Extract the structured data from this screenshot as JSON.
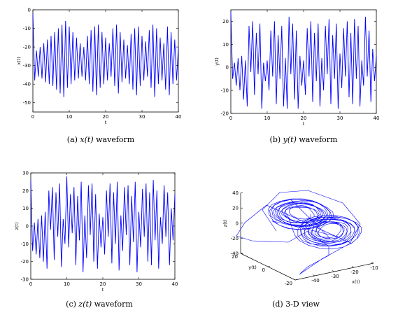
{
  "chart_data": [
    {
      "id": "x",
      "type": "line",
      "caption": {
        "prefix": "(a) ",
        "math": "x(t)",
        "suffix": " waveform"
      },
      "xlabel": "t",
      "ylabel": "x(t)",
      "xlim": [
        0,
        40
      ],
      "ylim": [
        -55,
        0
      ],
      "xticks": [
        0,
        10,
        20,
        30,
        40
      ],
      "yticks": [
        0,
        -10,
        -20,
        -30,
        -40,
        -50
      ],
      "grid": false,
      "color": "#0000ff",
      "series": [
        {
          "x": [
            0,
            0.5,
            1,
            1.5,
            2,
            2.5,
            3,
            3.5,
            4,
            4.5,
            5,
            5.5,
            6,
            6.5,
            7,
            7.5,
            8,
            8.5,
            9,
            9.5,
            10,
            10.5,
            11,
            11.5,
            12,
            12.5,
            13,
            13.5,
            14,
            14.5,
            15,
            15.5,
            16,
            16.5,
            17,
            17.5,
            18,
            18.5,
            19,
            19.5,
            20,
            20.5,
            21,
            21.5,
            22,
            22.5,
            23,
            23.5,
            24,
            24.5,
            25,
            25.5,
            26,
            26.5,
            27,
            27.5,
            28,
            28.5,
            29,
            29.5,
            30,
            30.5,
            31,
            31.5,
            32,
            32.5,
            33,
            33.5,
            34,
            34.5,
            35,
            35.5,
            36,
            36.5,
            37,
            37.5,
            38,
            38.5,
            39,
            39.5,
            40
          ],
          "y": [
            -2,
            -38,
            -22,
            -36,
            -20,
            -37,
            -18,
            -39,
            -16,
            -40,
            -14,
            -41,
            -12,
            -43,
            -10,
            -45,
            -8,
            -47,
            -6,
            -42,
            -9,
            -40,
            -12,
            -38,
            -15,
            -37,
            -18,
            -36,
            -20,
            -38,
            -14,
            -40,
            -11,
            -44,
            -9,
            -46,
            -8,
            -42,
            -12,
            -40,
            -15,
            -38,
            -18,
            -36,
            -10,
            -41,
            -8,
            -45,
            -12,
            -39,
            -16,
            -37,
            -19,
            -40,
            -13,
            -43,
            -10,
            -46,
            -9,
            -41,
            -14,
            -38,
            -17,
            -36,
            -11,
            -42,
            -8,
            -47,
            -10,
            -40,
            -15,
            -38,
            -18,
            -43,
            -9,
            -46,
            -12,
            -40,
            -16,
            -38,
            -20
          ]
        }
      ]
    },
    {
      "id": "y",
      "type": "line",
      "caption": {
        "prefix": "(b) ",
        "math": "y(t)",
        "suffix": " waveform"
      },
      "xlabel": "t",
      "ylabel": "y(t)",
      "xlim": [
        0,
        40
      ],
      "ylim": [
        -20,
        25
      ],
      "xticks": [
        0,
        10,
        20,
        30,
        40
      ],
      "yticks": [
        20,
        10,
        0,
        -10,
        -20
      ],
      "grid": false,
      "color": "#0000ff",
      "series": [
        {
          "x": [
            0,
            0.5,
            1,
            1.5,
            2,
            2.5,
            3,
            3.5,
            4,
            4.5,
            5,
            5.5,
            6,
            6.5,
            7,
            7.5,
            8,
            8.5,
            9,
            9.5,
            10,
            10.5,
            11,
            11.5,
            12,
            12.5,
            13,
            13.5,
            14,
            14.5,
            15,
            15.5,
            16,
            16.5,
            17,
            17.5,
            18,
            18.5,
            19,
            19.5,
            20,
            20.5,
            21,
            21.5,
            22,
            22.5,
            23,
            23.5,
            24,
            24.5,
            25,
            25.5,
            26,
            26.5,
            27,
            27.5,
            28,
            28.5,
            29,
            29.5,
            30,
            30.5,
            31,
            31.5,
            32,
            32.5,
            33,
            33.5,
            34,
            34.5,
            35,
            35.5,
            36,
            36.5,
            37,
            37.5,
            38,
            38.5,
            39,
            39.5,
            40
          ],
          "y": [
            24,
            -5,
            2,
            -8,
            4,
            -10,
            5,
            -14,
            3,
            -17,
            18,
            -2,
            20,
            -12,
            15,
            -3,
            19,
            -18,
            2,
            -6,
            3,
            -10,
            16,
            -4,
            20,
            -16,
            14,
            -5,
            18,
            -17,
            4,
            -18,
            22,
            -3,
            19,
            -14,
            16,
            -18,
            5,
            -8,
            3,
            -12,
            17,
            -4,
            20,
            -15,
            15,
            -6,
            19,
            -17,
            4,
            -10,
            18,
            -3,
            21,
            -16,
            14,
            -5,
            19,
            -18,
            6,
            -9,
            17,
            -4,
            20,
            -13,
            15,
            -16,
            21,
            -5,
            18,
            -17,
            3,
            -8,
            22,
            -4,
            16,
            -15,
            8,
            -6,
            5
          ]
        }
      ]
    },
    {
      "id": "z",
      "type": "line",
      "caption": {
        "prefix": "(c) ",
        "math": "z(t)",
        "suffix": " waveform"
      },
      "xlabel": "t",
      "ylabel": "z(t)",
      "xlim": [
        0,
        40
      ],
      "ylim": [
        -30,
        30
      ],
      "xticks": [
        0,
        10,
        20,
        30,
        40
      ],
      "yticks": [
        30,
        20,
        10,
        0,
        -10,
        -20,
        -30
      ],
      "grid": false,
      "color": "#0000ff",
      "series": [
        {
          "x": [
            0,
            0.5,
            1,
            1.5,
            2,
            2.5,
            3,
            3.5,
            4,
            4.5,
            5,
            5.5,
            6,
            6.5,
            7,
            7.5,
            8,
            8.5,
            9,
            9.5,
            10,
            10.5,
            11,
            11.5,
            12,
            12.5,
            13,
            13.5,
            14,
            14.5,
            15,
            15.5,
            16,
            16.5,
            17,
            17.5,
            18,
            18.5,
            19,
            19.5,
            20,
            20.5,
            21,
            21.5,
            22,
            22.5,
            23,
            23.5,
            24,
            24.5,
            25,
            25.5,
            26,
            26.5,
            27,
            27.5,
            28,
            28.5,
            29,
            29.5,
            30,
            30.5,
            31,
            31.5,
            32,
            32.5,
            33,
            33.5,
            34,
            34.5,
            35,
            35.5,
            36,
            36.5,
            37,
            37.5,
            38,
            38.5,
            39,
            39.5,
            40
          ],
          "y": [
            26,
            -14,
            2,
            -16,
            4,
            -18,
            6,
            -20,
            8,
            -24,
            20,
            -2,
            22,
            -19,
            19,
            -6,
            24,
            -23,
            4,
            -10,
            28,
            -12,
            18,
            -4,
            22,
            -22,
            17,
            -8,
            25,
            -26,
            6,
            -18,
            23,
            -5,
            24,
            -20,
            18,
            -24,
            7,
            -12,
            5,
            -16,
            20,
            -6,
            24,
            -21,
            19,
            -10,
            25,
            -25,
            6,
            -14,
            22,
            -5,
            23,
            -22,
            17,
            -9,
            25,
            -26,
            8,
            -12,
            21,
            -6,
            24,
            -20,
            19,
            -22,
            26,
            -8,
            20,
            -24,
            5,
            -10,
            23,
            -6,
            19,
            -22,
            10,
            -8,
            18
          ]
        }
      ]
    },
    {
      "id": "xyz",
      "type": "line",
      "caption": {
        "prefix": "(d) 3-D view",
        "math": "",
        "suffix": ""
      },
      "xlabel": "x(t)",
      "ylabel": "y(t)",
      "zlabel": "z(t)",
      "xlim": [
        -50,
        -10
      ],
      "ylim": [
        -20,
        20
      ],
      "zlim": [
        -40,
        40
      ],
      "xticks": [
        -40,
        -30,
        -20,
        -10
      ],
      "yticks": [
        20,
        0,
        -20
      ],
      "zticks": [
        40,
        20,
        0,
        -20,
        -40
      ],
      "grid": false,
      "color": "#0000ff"
    }
  ]
}
